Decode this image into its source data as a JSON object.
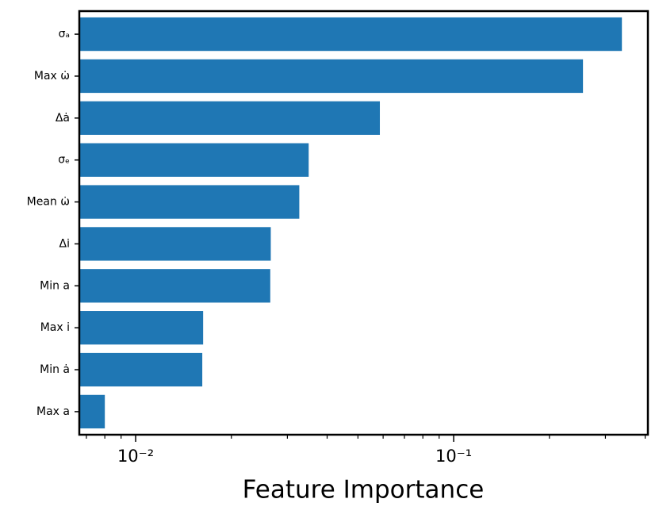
{
  "chart_data": {
    "type": "barh",
    "xlabel": "Feature Importance",
    "categories": [
      "σₐ",
      "Max ω̇",
      "Δȧ",
      "σₑ",
      "Mean ω̇",
      "Δi̇",
      "Min a",
      "Max i",
      "Min ȧ",
      "Max a"
    ],
    "values": [
      0.338,
      0.255,
      0.0586,
      0.035,
      0.0327,
      0.0266,
      0.0265,
      0.0163,
      0.0162,
      0.008
    ],
    "color": "#1f77b4",
    "xscale": "log",
    "xlim": [
      0.00665,
      0.408
    ],
    "xticks": [
      {
        "value": 0.01,
        "label": "10⁻²"
      },
      {
        "value": 0.1,
        "label": "10⁻¹"
      }
    ],
    "xminorticks": [
      0.007,
      0.008,
      0.009,
      0.02,
      0.03,
      0.04,
      0.05,
      0.06,
      0.07,
      0.08,
      0.09,
      0.2,
      0.3,
      0.4
    ],
    "grid": false
  }
}
